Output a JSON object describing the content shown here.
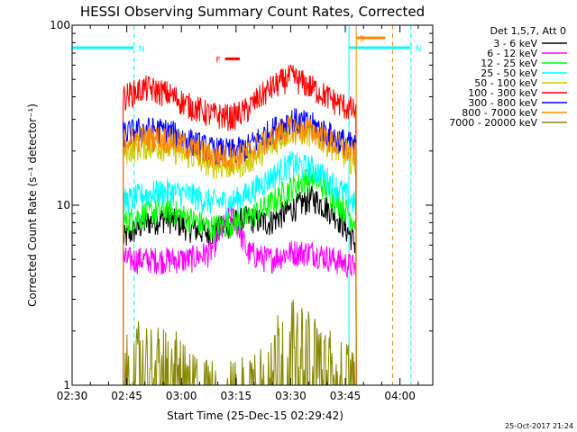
{
  "chart_data": {
    "type": "line",
    "title": "HESSI Observing Summary Count Rates, Corrected",
    "xlabel": "Start Time (25-Dec-15 02:29:42)",
    "ylabel": "Corrected Count Rate (s⁻¹ detector⁻¹)",
    "y_scale": "log",
    "ylim": [
      1,
      100
    ],
    "y_ticks": [
      "1",
      "10",
      "100"
    ],
    "xlim": [
      "02:30",
      "04:09"
    ],
    "x_ticks": [
      "02:30",
      "02:45",
      "03:00",
      "03:15",
      "03:30",
      "03:45",
      "04:00"
    ],
    "legend_header": "Det 1,5,7, Att 0",
    "legend_position": "right",
    "grid": false,
    "data_window": [
      "02:44",
      "03:48"
    ],
    "series": [
      {
        "name": "3 - 6 keV",
        "color": "#000000",
        "x": [
          "02:44",
          "02:50",
          "02:56",
          "03:02",
          "03:08",
          "03:14",
          "03:18",
          "03:24",
          "03:30",
          "03:36",
          "03:42",
          "03:48"
        ],
        "y": [
          6.5,
          8,
          8.5,
          7.5,
          7,
          8,
          8.5,
          8,
          9.5,
          11,
          9,
          6
        ]
      },
      {
        "name": "6 - 12 keV",
        "color": "#ff00ff",
        "x": [
          "02:44",
          "02:50",
          "02:56",
          "03:02",
          "03:08",
          "03:14",
          "03:18",
          "03:24",
          "03:30",
          "03:36",
          "03:42",
          "03:48"
        ],
        "y": [
          5,
          5,
          5,
          5,
          5.5,
          9,
          5.5,
          5,
          5.5,
          5.5,
          5,
          4.5
        ]
      },
      {
        "name": "12 - 25 keV",
        "color": "#00ff00",
        "x": [
          "02:44",
          "02:50",
          "02:56",
          "03:02",
          "03:08",
          "03:14",
          "03:18",
          "03:24",
          "03:30",
          "03:36",
          "03:42",
          "03:48"
        ],
        "y": [
          8,
          9,
          9.5,
          8.5,
          7.5,
          8,
          8.5,
          10,
          12.5,
          14.5,
          11,
          8
        ]
      },
      {
        "name": "25 - 50 keV",
        "color": "#00ffff",
        "x": [
          "02:44",
          "02:50",
          "02:56",
          "03:02",
          "03:08",
          "03:14",
          "03:18",
          "03:24",
          "03:30",
          "03:36",
          "03:42",
          "03:48"
        ],
        "y": [
          10.5,
          11.5,
          12,
          11.5,
          10.5,
          10.5,
          11.5,
          14,
          17,
          16,
          13,
          10
        ]
      },
      {
        "name": "50 - 100 keV",
        "color": "#cccc00",
        "x": [
          "02:44",
          "02:50",
          "02:56",
          "03:02",
          "03:08",
          "03:14",
          "03:18",
          "03:24",
          "03:30",
          "03:36",
          "03:42",
          "03:48"
        ],
        "y": [
          20,
          21.5,
          21,
          19,
          17,
          16.5,
          17.5,
          21,
          26,
          25,
          21,
          17
        ]
      },
      {
        "name": "100 - 300 keV",
        "color": "#ff0000",
        "x": [
          "02:44",
          "02:50",
          "02:56",
          "03:02",
          "03:08",
          "03:14",
          "03:18",
          "03:24",
          "03:30",
          "03:36",
          "03:42",
          "03:48"
        ],
        "y": [
          40,
          45,
          42,
          36,
          32,
          31,
          34,
          44,
          52,
          45,
          38,
          33
        ]
      },
      {
        "name": "300 - 800 keV",
        "color": "#0000ff",
        "x": [
          "02:44",
          "02:50",
          "02:56",
          "03:02",
          "03:08",
          "03:14",
          "03:18",
          "03:24",
          "03:30",
          "03:36",
          "03:42",
          "03:48"
        ],
        "y": [
          25,
          26.5,
          26,
          23,
          20.5,
          20,
          21,
          25.5,
          30,
          28,
          24,
          21
        ]
      },
      {
        "name": "800 - 7000 keV",
        "color": "#ff8800",
        "x": [
          "02:44",
          "02:50",
          "02:56",
          "03:02",
          "03:08",
          "03:14",
          "03:18",
          "03:24",
          "03:30",
          "03:36",
          "03:42",
          "03:48"
        ],
        "y": [
          23,
          24,
          23.5,
          21,
          19,
          18.5,
          19.5,
          23,
          27,
          26,
          22,
          19
        ]
      },
      {
        "name": "7000 - 20000 keV",
        "color": "#888800",
        "x": [
          "02:44",
          "02:46",
          "02:50",
          "02:55",
          "03:00",
          "03:05",
          "03:10",
          "03:15",
          "03:20",
          "03:26",
          "03:30",
          "03:34",
          "03:40",
          "03:46",
          "03:48"
        ],
        "y": [
          1,
          1.7,
          1.6,
          1.5,
          1.4,
          1,
          1,
          1,
          1.2,
          1.8,
          2.2,
          1.9,
          1.5,
          1.3,
          1
        ]
      }
    ],
    "annotations": [
      {
        "label": "N",
        "color": "#00ffff",
        "x_start": "02:30",
        "x_end": "02:47",
        "y": 75,
        "dashed_at": "02:47"
      },
      {
        "label": "N",
        "color": "#00ffff",
        "x_start": "03:46",
        "x_end": "04:03",
        "y": 75,
        "dashed_at": "04:03"
      },
      {
        "label": "S",
        "color": "#ff8800",
        "x_start": "03:48",
        "x_end": "03:56",
        "y": 85,
        "dashed_at": "03:58"
      },
      {
        "label": "F",
        "color": "#ff0000",
        "x_start": "03:12",
        "x_end": "03:16",
        "y": 65
      }
    ],
    "timestamp": "25-Oct-2017 21:24"
  }
}
